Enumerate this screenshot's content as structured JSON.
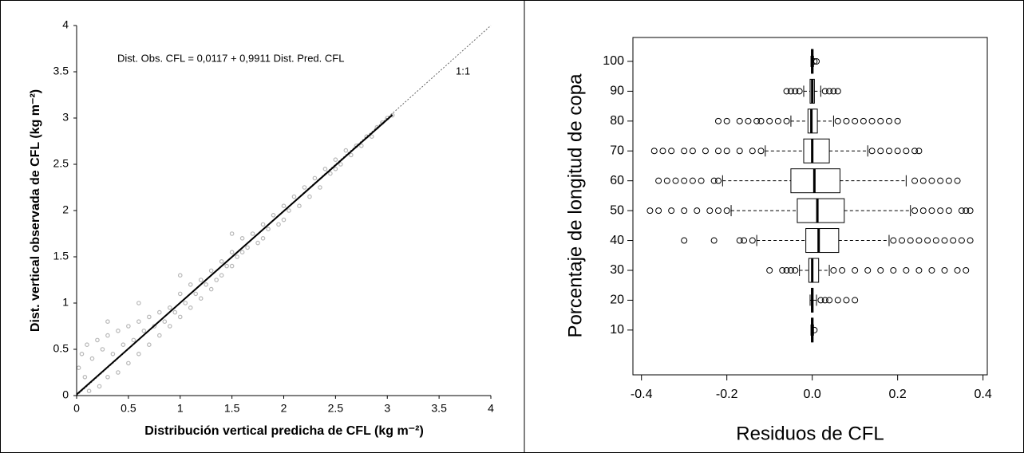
{
  "chart_data": [
    {
      "type": "scatter",
      "annotation": "Dist. Obs. CFL = 0,0117 + 0,9911 Dist. Pred. CFL",
      "ref_label": "1:1",
      "xlabel": "Distribución vertical predicha de CFL (kg m⁻²)",
      "ylabel": "Dist. vertical observada de CFL (kg m⁻²)",
      "xlim": [
        0,
        4
      ],
      "ylim": [
        0,
        4
      ],
      "xticks": [
        0,
        0.5,
        1,
        1.5,
        2,
        2.5,
        3,
        3.5,
        4
      ],
      "yticks": [
        0,
        0.5,
        1,
        1.5,
        2,
        2.5,
        3,
        3.5,
        4
      ],
      "color": "#b8b8b8",
      "fit": {
        "intercept": 0.0117,
        "slope": 0.9911,
        "xmax": 3.05
      },
      "x": [
        0.02,
        0.05,
        0.08,
        0.1,
        0.12,
        0.15,
        0.2,
        0.22,
        0.25,
        0.3,
        0.3,
        0.35,
        0.4,
        0.4,
        0.45,
        0.5,
        0.5,
        0.55,
        0.6,
        0.6,
        0.65,
        0.7,
        0.7,
        0.75,
        0.8,
        0.8,
        0.85,
        0.9,
        0.9,
        0.95,
        1.0,
        1.0,
        1.05,
        1.1,
        1.1,
        1.15,
        1.2,
        1.2,
        1.25,
        1.3,
        1.3,
        1.35,
        1.4,
        1.4,
        1.45,
        1.5,
        1.5,
        1.55,
        1.6,
        1.6,
        1.65,
        1.7,
        1.75,
        1.8,
        1.8,
        1.85,
        1.9,
        1.95,
        2.0,
        2.0,
        2.05,
        2.1,
        2.15,
        2.2,
        2.25,
        2.3,
        2.35,
        2.4,
        2.45,
        2.5,
        2.5,
        2.55,
        2.6,
        2.65,
        2.7,
        2.75,
        2.8,
        2.85,
        2.9,
        2.95,
        3.0,
        3.05,
        1.5,
        1.0,
        0.6,
        0.3
      ],
      "y": [
        0.3,
        0.45,
        0.2,
        0.55,
        0.05,
        0.4,
        0.6,
        0.1,
        0.5,
        0.65,
        0.2,
        0.45,
        0.7,
        0.25,
        0.55,
        0.75,
        0.35,
        0.6,
        0.8,
        0.45,
        0.7,
        0.85,
        0.55,
        0.75,
        0.9,
        0.65,
        0.8,
        0.95,
        0.75,
        0.9,
        1.1,
        0.85,
        1.0,
        1.2,
        0.95,
        1.1,
        1.25,
        1.05,
        1.2,
        1.35,
        1.15,
        1.25,
        1.45,
        1.3,
        1.4,
        1.55,
        1.4,
        1.5,
        1.7,
        1.55,
        1.6,
        1.75,
        1.65,
        1.85,
        1.7,
        1.8,
        1.95,
        1.85,
        2.05,
        1.9,
        2.0,
        2.15,
        2.05,
        2.25,
        2.15,
        2.35,
        2.25,
        2.45,
        2.4,
        2.55,
        2.45,
        2.5,
        2.65,
        2.6,
        2.7,
        2.7,
        2.8,
        2.8,
        2.9,
        2.95,
        3.0,
        3.03,
        1.75,
        1.3,
        1.0,
        0.8
      ]
    },
    {
      "type": "box",
      "xlabel": "Residuos de CFL",
      "ylabel": "Porcentaje de longitud de copa",
      "xlim": [
        -0.42,
        0.41
      ],
      "ylim": [
        -5,
        108
      ],
      "xticks": [
        {
          "value": -0.4,
          "label": "-0.4"
        },
        {
          "value": -0.2,
          "label": "-0.2"
        },
        {
          "value": 0,
          "label": "0.0"
        },
        {
          "value": 0.2,
          "label": "0.2"
        },
        {
          "value": 0.4,
          "label": "0.4"
        }
      ],
      "yticks": [
        10,
        20,
        30,
        40,
        50,
        60,
        70,
        80,
        90,
        100
      ],
      "boxes": [
        {
          "y": 10,
          "whislo": -0.003,
          "q1": -0.002,
          "med": 0,
          "q3": 0.002,
          "whishi": 0.003,
          "fliers": [
            0.005
          ]
        },
        {
          "y": 20,
          "whislo": -0.005,
          "q1": -0.002,
          "med": 0,
          "q3": 0.002,
          "whishi": 0.01,
          "fliers": [
            0.02,
            0.03,
            0.04,
            0.06,
            0.08,
            0.1
          ]
        },
        {
          "y": 30,
          "whislo": -0.03,
          "q1": -0.008,
          "med": 0,
          "q3": 0.015,
          "whishi": 0.04,
          "fliers": [
            -0.1,
            -0.07,
            -0.06,
            -0.05,
            -0.04,
            0.05,
            0.07,
            0.1,
            0.13,
            0.16,
            0.19,
            0.22,
            0.25,
            0.28,
            0.31,
            0.34,
            0.36
          ]
        },
        {
          "y": 40,
          "whislo": -0.13,
          "q1": -0.015,
          "med": 0.015,
          "q3": 0.062,
          "whishi": 0.18,
          "fliers": [
            -0.3,
            -0.23,
            -0.17,
            -0.16,
            -0.14,
            0.19,
            0.21,
            0.23,
            0.25,
            0.27,
            0.29,
            0.31,
            0.33,
            0.35,
            0.37
          ]
        },
        {
          "y": 50,
          "whislo": -0.19,
          "q1": -0.035,
          "med": 0.012,
          "q3": 0.075,
          "whishi": 0.23,
          "fliers": [
            -0.38,
            -0.36,
            -0.33,
            -0.3,
            -0.27,
            -0.24,
            -0.22,
            -0.2,
            0.24,
            0.26,
            0.28,
            0.3,
            0.32,
            0.35,
            0.36,
            0.37
          ]
        },
        {
          "y": 60,
          "whislo": -0.21,
          "q1": -0.05,
          "med": 0.005,
          "q3": 0.065,
          "whishi": 0.22,
          "fliers": [
            -0.36,
            -0.34,
            -0.32,
            -0.3,
            -0.28,
            -0.26,
            -0.23,
            -0.22,
            0.24,
            0.26,
            0.28,
            0.3,
            0.32,
            0.34
          ]
        },
        {
          "y": 70,
          "whislo": -0.11,
          "q1": -0.02,
          "med": 0,
          "q3": 0.04,
          "whishi": 0.13,
          "fliers": [
            -0.37,
            -0.35,
            -0.33,
            -0.3,
            -0.28,
            -0.25,
            -0.22,
            -0.2,
            -0.17,
            -0.14,
            -0.12,
            0.14,
            0.16,
            0.18,
            0.2,
            0.22,
            0.24,
            0.25
          ]
        },
        {
          "y": 80,
          "whislo": -0.05,
          "q1": -0.01,
          "med": -0.002,
          "q3": 0.012,
          "whishi": 0.05,
          "fliers": [
            -0.22,
            -0.2,
            -0.17,
            -0.15,
            -0.13,
            -0.12,
            -0.1,
            -0.08,
            -0.06,
            0.06,
            0.08,
            0.1,
            0.12,
            0.14,
            0.16,
            0.18,
            0.2
          ]
        },
        {
          "y": 90,
          "whislo": -0.02,
          "q1": -0.005,
          "med": 0,
          "q3": 0.005,
          "whishi": 0.02,
          "fliers": [
            -0.06,
            -0.05,
            -0.04,
            -0.03,
            0.03,
            0.04,
            0.05,
            0.06
          ]
        },
        {
          "y": 100,
          "whislo": -0.003,
          "q1": -0.002,
          "med": 0,
          "q3": 0.002,
          "whishi": 0.003,
          "fliers": [
            0.005,
            0.01
          ]
        }
      ]
    }
  ]
}
